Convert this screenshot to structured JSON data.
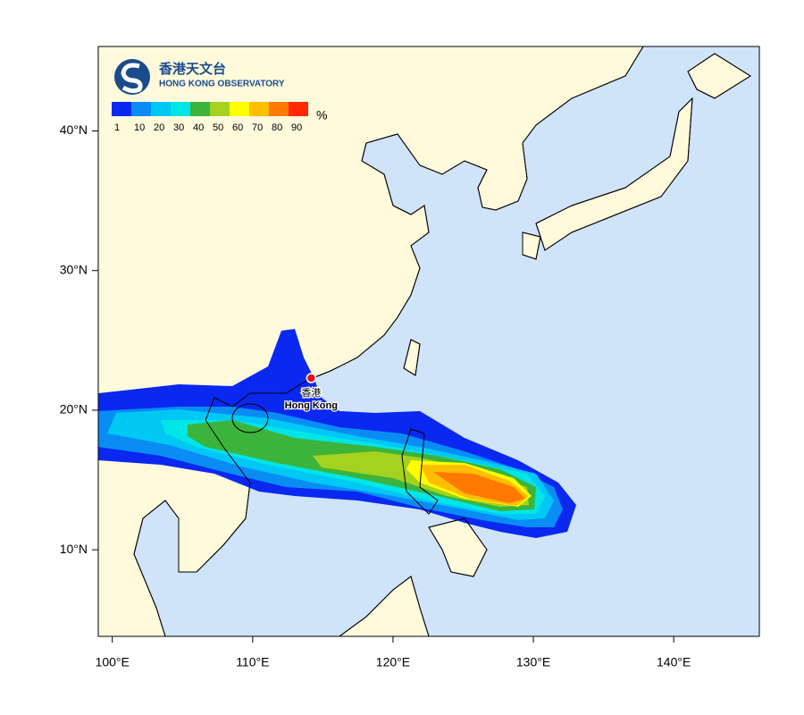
{
  "map": {
    "logo": {
      "name_zh": "香港天文台",
      "name_en": "HONG KONG OBSERVATORY"
    },
    "legend": {
      "levels": [
        1,
        10,
        20,
        30,
        40,
        50,
        60,
        70,
        80,
        90
      ],
      "unit": "%",
      "colors": [
        "#0a28f0",
        "#0a8cf5",
        "#00c8f5",
        "#00e6e6",
        "#3cb43c",
        "#a5d21e",
        "#ffff00",
        "#ffbe00",
        "#ff7800",
        "#ff2800",
        "#a00040"
      ]
    },
    "xlim": [
      99,
      146.1
    ],
    "ylim": [
      3.8,
      46.05
    ],
    "xticks": [
      {
        "value": 100,
        "label": "100°E"
      },
      {
        "value": 110,
        "label": "110°E"
      },
      {
        "value": 120,
        "label": "120°E"
      },
      {
        "value": 130,
        "label": "130°E"
      },
      {
        "value": 140,
        "label": "140°E"
      }
    ],
    "yticks": [
      {
        "value": 10,
        "label": "10°N"
      },
      {
        "value": 20,
        "label": "20°N"
      },
      {
        "value": 30,
        "label": "30°N"
      },
      {
        "value": 40,
        "label": "40°N"
      }
    ],
    "place": {
      "name_zh": "香港",
      "name_en": "Hong Kong",
      "lon": 114.17,
      "lat": 22.3
    }
  }
}
